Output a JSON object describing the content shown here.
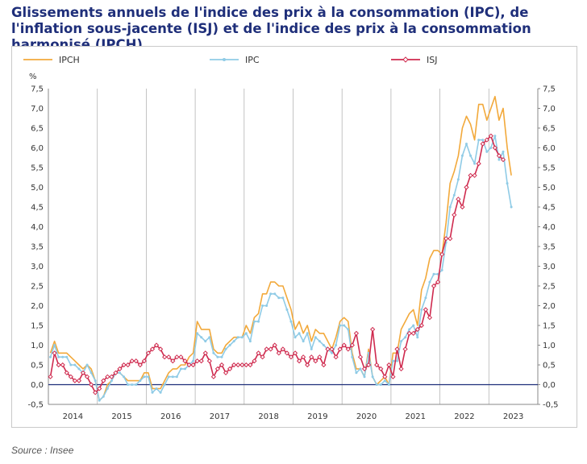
{
  "title": "Glissements annuels de l'indice des prix à la consommation (IPC), de l'inflation sous-jacente (ISJ) et de l'indice des prix à la consommation harmonisé (IPCH)",
  "source": "Source : Insee",
  "chart_data": {
    "type": "line",
    "unit": "%",
    "ylim": [
      -0.5,
      7.5
    ],
    "y_ticks": [
      "-0,5",
      "0,0",
      "0,5",
      "1,0",
      "1,5",
      "2,0",
      "2,5",
      "3,0",
      "3,5",
      "4,0",
      "4,5",
      "5,0",
      "5,5",
      "6,0",
      "6,5",
      "7,0",
      "7,5"
    ],
    "years": [
      "2014",
      "2015",
      "2016",
      "2017",
      "2018",
      "2019",
      "2020",
      "2021",
      "2022",
      "2023"
    ],
    "x_start": "2014-01",
    "grid": "vertical lines between years",
    "legend_position": "top",
    "series": [
      {
        "name": "IPCH",
        "color": "#f2a93b",
        "marker": "none",
        "values": [
          0.8,
          1.1,
          0.8,
          0.8,
          0.8,
          0.7,
          0.6,
          0.5,
          0.4,
          0.5,
          0.4,
          0.1,
          -0.4,
          -0.3,
          0.0,
          0.1,
          0.3,
          0.3,
          0.2,
          0.1,
          0.1,
          0.1,
          0.1,
          0.3,
          0.3,
          -0.1,
          -0.1,
          -0.1,
          0.1,
          0.3,
          0.4,
          0.4,
          0.5,
          0.5,
          0.7,
          0.8,
          1.6,
          1.4,
          1.4,
          1.4,
          0.9,
          0.8,
          0.8,
          1.0,
          1.1,
          1.2,
          1.2,
          1.2,
          1.5,
          1.3,
          1.7,
          1.8,
          2.3,
          2.3,
          2.6,
          2.6,
          2.5,
          2.5,
          2.2,
          1.9,
          1.4,
          1.6,
          1.3,
          1.5,
          1.1,
          1.4,
          1.3,
          1.3,
          1.1,
          0.9,
          1.2,
          1.6,
          1.7,
          1.6,
          0.8,
          0.4,
          0.4,
          0.2,
          0.9,
          0.2,
          0.0,
          0.1,
          0.2,
          0.0,
          0.8,
          0.8,
          1.4,
          1.6,
          1.8,
          1.9,
          1.5,
          2.4,
          2.7,
          3.2,
          3.4,
          3.4,
          3.3,
          4.1,
          5.1,
          5.4,
          5.8,
          6.5,
          6.8,
          6.6,
          6.2,
          7.1,
          7.1,
          6.7,
          7.0,
          7.3,
          6.7,
          7.0,
          6.0,
          5.3
        ]
      },
      {
        "name": "IPC",
        "color": "#8fcbe6",
        "marker": "dot",
        "values": [
          0.7,
          1.0,
          0.7,
          0.7,
          0.7,
          0.5,
          0.5,
          0.4,
          0.3,
          0.5,
          0.3,
          0.1,
          -0.4,
          -0.3,
          -0.1,
          0.1,
          0.3,
          0.3,
          0.2,
          0.0,
          0.0,
          0.0,
          0.1,
          0.2,
          0.2,
          -0.2,
          -0.1,
          -0.2,
          0.0,
          0.2,
          0.2,
          0.2,
          0.4,
          0.4,
          0.5,
          0.6,
          1.3,
          1.2,
          1.1,
          1.2,
          0.8,
          0.7,
          0.7,
          0.9,
          1.0,
          1.1,
          1.2,
          1.2,
          1.3,
          1.1,
          1.6,
          1.6,
          2.0,
          2.0,
          2.3,
          2.3,
          2.2,
          2.2,
          1.9,
          1.6,
          1.2,
          1.3,
          1.1,
          1.3,
          0.9,
          1.2,
          1.1,
          1.0,
          0.9,
          0.8,
          1.0,
          1.5,
          1.5,
          1.4,
          0.7,
          0.3,
          0.4,
          0.2,
          0.8,
          0.2,
          0.0,
          0.0,
          0.1,
          0.0,
          0.6,
          0.6,
          1.1,
          1.2,
          1.4,
          1.5,
          1.2,
          1.9,
          2.2,
          2.6,
          2.8,
          2.8,
          2.9,
          3.6,
          4.5,
          4.8,
          5.2,
          5.8,
          6.1,
          5.8,
          5.6,
          6.2,
          6.2,
          5.9,
          6.0,
          6.3,
          5.7,
          5.9,
          5.1,
          4.5
        ]
      },
      {
        "name": "ISJ",
        "color": "#cf2a4e",
        "marker": "diamond",
        "values": [
          0.2,
          0.8,
          0.5,
          0.5,
          0.3,
          0.2,
          0.1,
          0.1,
          0.3,
          0.2,
          0.0,
          -0.2,
          -0.1,
          0.1,
          0.2,
          0.2,
          0.3,
          0.4,
          0.5,
          0.5,
          0.6,
          0.6,
          0.5,
          0.6,
          0.8,
          0.9,
          1.0,
          0.9,
          0.7,
          0.7,
          0.6,
          0.7,
          0.7,
          0.6,
          0.5,
          0.5,
          0.6,
          0.6,
          0.8,
          0.6,
          0.2,
          0.4,
          0.5,
          0.3,
          0.4,
          0.5,
          0.5,
          0.5,
          0.5,
          0.5,
          0.6,
          0.8,
          0.7,
          0.9,
          0.9,
          1.0,
          0.8,
          0.9,
          0.8,
          0.7,
          0.8,
          0.6,
          0.7,
          0.5,
          0.7,
          0.6,
          0.7,
          0.5,
          0.9,
          0.9,
          0.7,
          0.9,
          1.0,
          0.9,
          1.0,
          1.3,
          0.7,
          0.4,
          0.5,
          1.4,
          0.5,
          0.4,
          0.2,
          0.5,
          0.2,
          0.9,
          0.4,
          0.9,
          1.3,
          1.3,
          1.4,
          1.5,
          1.9,
          1.7,
          2.5,
          2.6,
          3.3,
          3.7,
          3.7,
          4.3,
          4.7,
          4.5,
          5.0,
          5.3,
          5.3,
          5.6,
          6.1,
          6.2,
          6.3,
          6.0,
          5.8,
          5.7
        ]
      }
    ]
  }
}
